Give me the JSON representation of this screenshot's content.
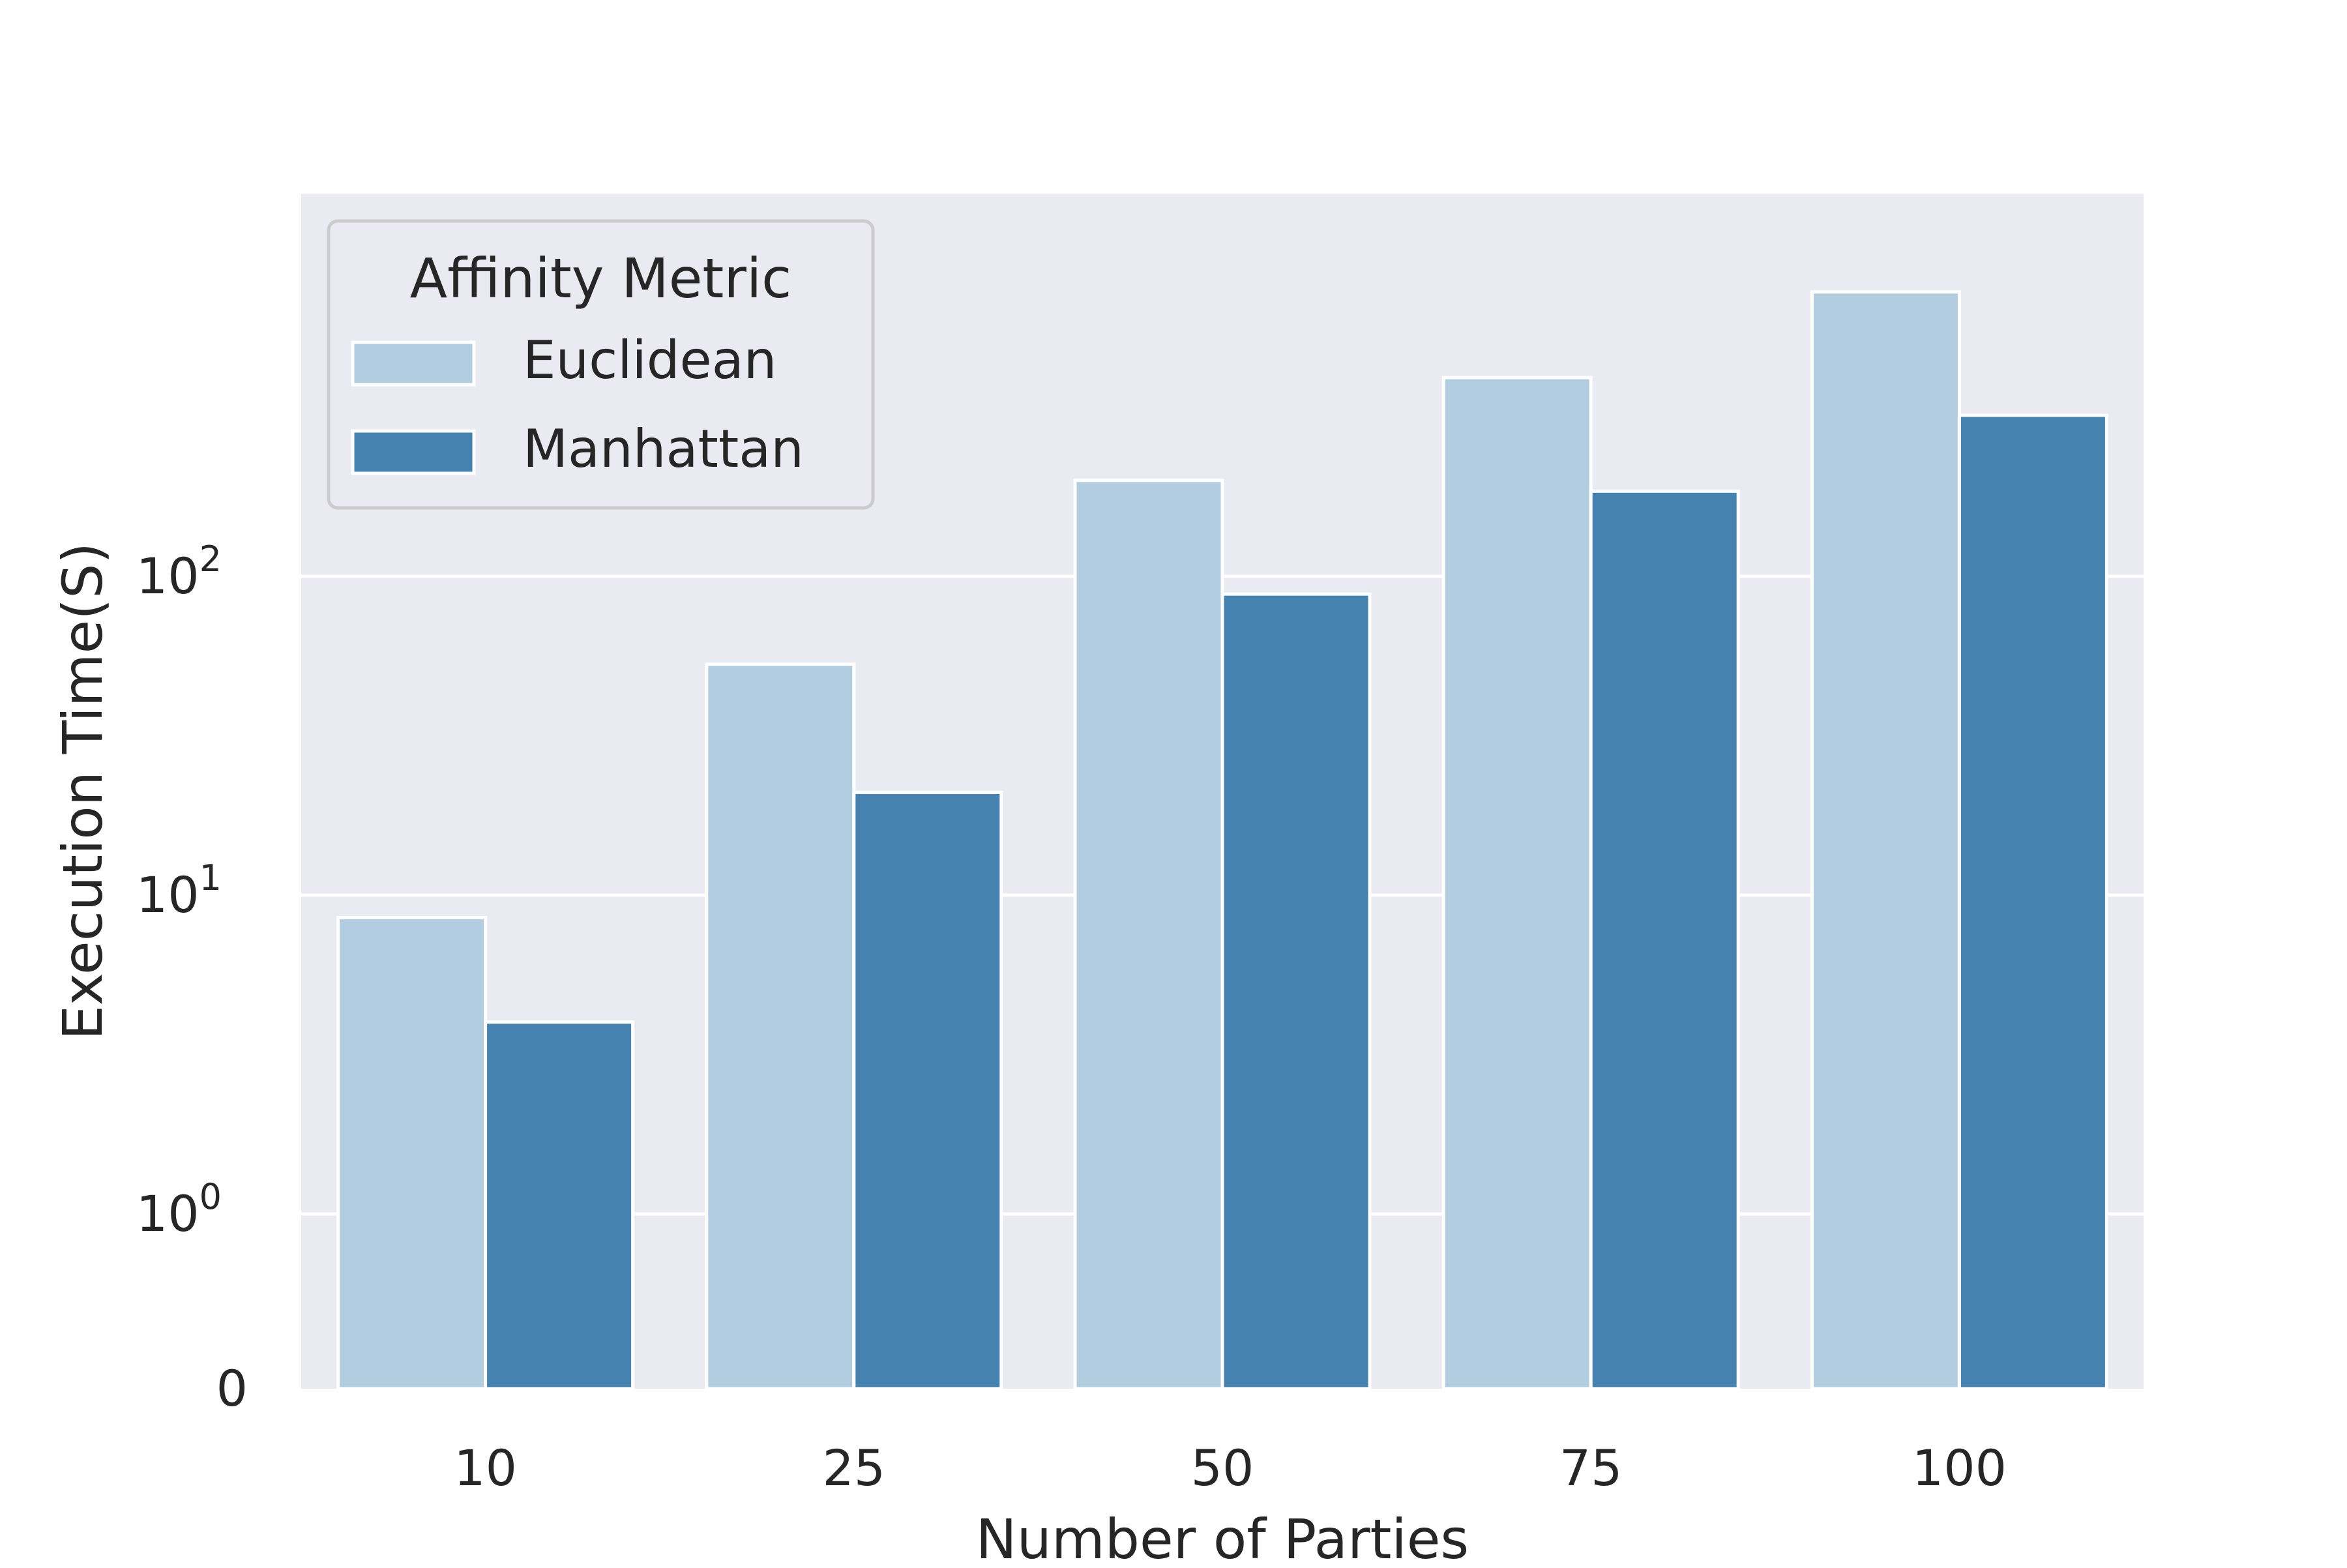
{
  "chart_data": {
    "type": "bar",
    "scale": "symlog",
    "title": "",
    "xlabel": "Number of Parties",
    "ylabel": "Execution Time(S)",
    "categories": [
      "10",
      "25",
      "50",
      "75",
      "100"
    ],
    "series": [
      {
        "name": "Euclidean",
        "color": "#b3cde0",
        "values": [
          8.5,
          53,
          200,
          420,
          780
        ]
      },
      {
        "name": "Manhattan",
        "color": "#4682b0",
        "values": [
          4.0,
          21,
          88,
          185,
          320
        ]
      }
    ],
    "y_ticks": [
      {
        "value": 0,
        "base": "0",
        "exp": ""
      },
      {
        "value": 1,
        "base": "10",
        "exp": "0"
      },
      {
        "value": 10,
        "base": "10",
        "exp": "1"
      },
      {
        "value": 100,
        "base": "10",
        "exp": "2"
      }
    ],
    "ylim": [
      0,
      780
    ],
    "grid": true,
    "background": "#eaeaf2",
    "legend": {
      "title": "Affinity Metric",
      "position": "top-left"
    }
  }
}
